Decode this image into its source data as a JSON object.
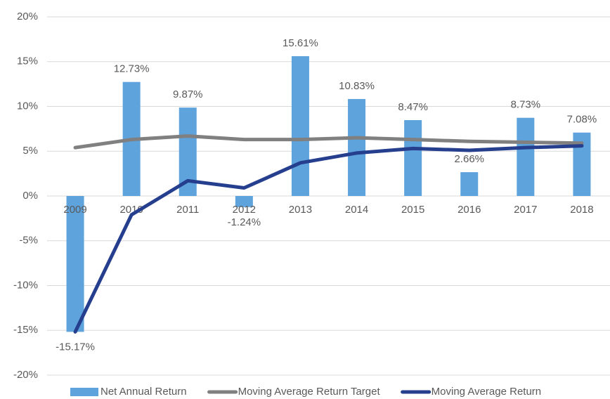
{
  "chart_data": {
    "type": "bar",
    "categories": [
      "2009",
      "2010",
      "2011",
      "2012",
      "2013",
      "2014",
      "2015",
      "2016",
      "2017",
      "2018"
    ],
    "series": [
      {
        "name": "Net Annual Return",
        "type": "bar",
        "color": "#5ea3dc",
        "values": [
          -15.17,
          12.73,
          9.87,
          -1.24,
          15.61,
          10.83,
          8.47,
          2.66,
          8.73,
          7.08
        ],
        "value_labels": [
          "-15.17%",
          "12.73%",
          "9.87%",
          "-1.24%",
          "15.61%",
          "10.83%",
          "8.47%",
          "2.66%",
          "8.73%",
          "7.08%"
        ]
      },
      {
        "name": "Moving Average Return Target",
        "type": "line",
        "color": "#808080",
        "values": [
          5.4,
          6.3,
          6.7,
          6.3,
          6.3,
          6.5,
          6.3,
          6.1,
          6.0,
          5.9
        ]
      },
      {
        "name": "Moving Average Return",
        "type": "line",
        "color": "#253f8e",
        "values": [
          -15.17,
          -2.1,
          1.7,
          0.9,
          3.7,
          4.8,
          5.3,
          5.1,
          5.4,
          5.6
        ]
      }
    ],
    "ylim": [
      -20,
      20
    ],
    "yticks": [
      {
        "value": 20,
        "label": "20%"
      },
      {
        "value": 15,
        "label": "15%"
      },
      {
        "value": 10,
        "label": "10%"
      },
      {
        "value": 5,
        "label": "5%"
      },
      {
        "value": 0,
        "label": "0%"
      },
      {
        "value": -5,
        "label": "-5%"
      },
      {
        "value": -10,
        "label": "-10%"
      },
      {
        "value": -15,
        "label": "-15%"
      },
      {
        "value": -20,
        "label": "-20%"
      }
    ],
    "grid": true,
    "legend": "bottom"
  }
}
